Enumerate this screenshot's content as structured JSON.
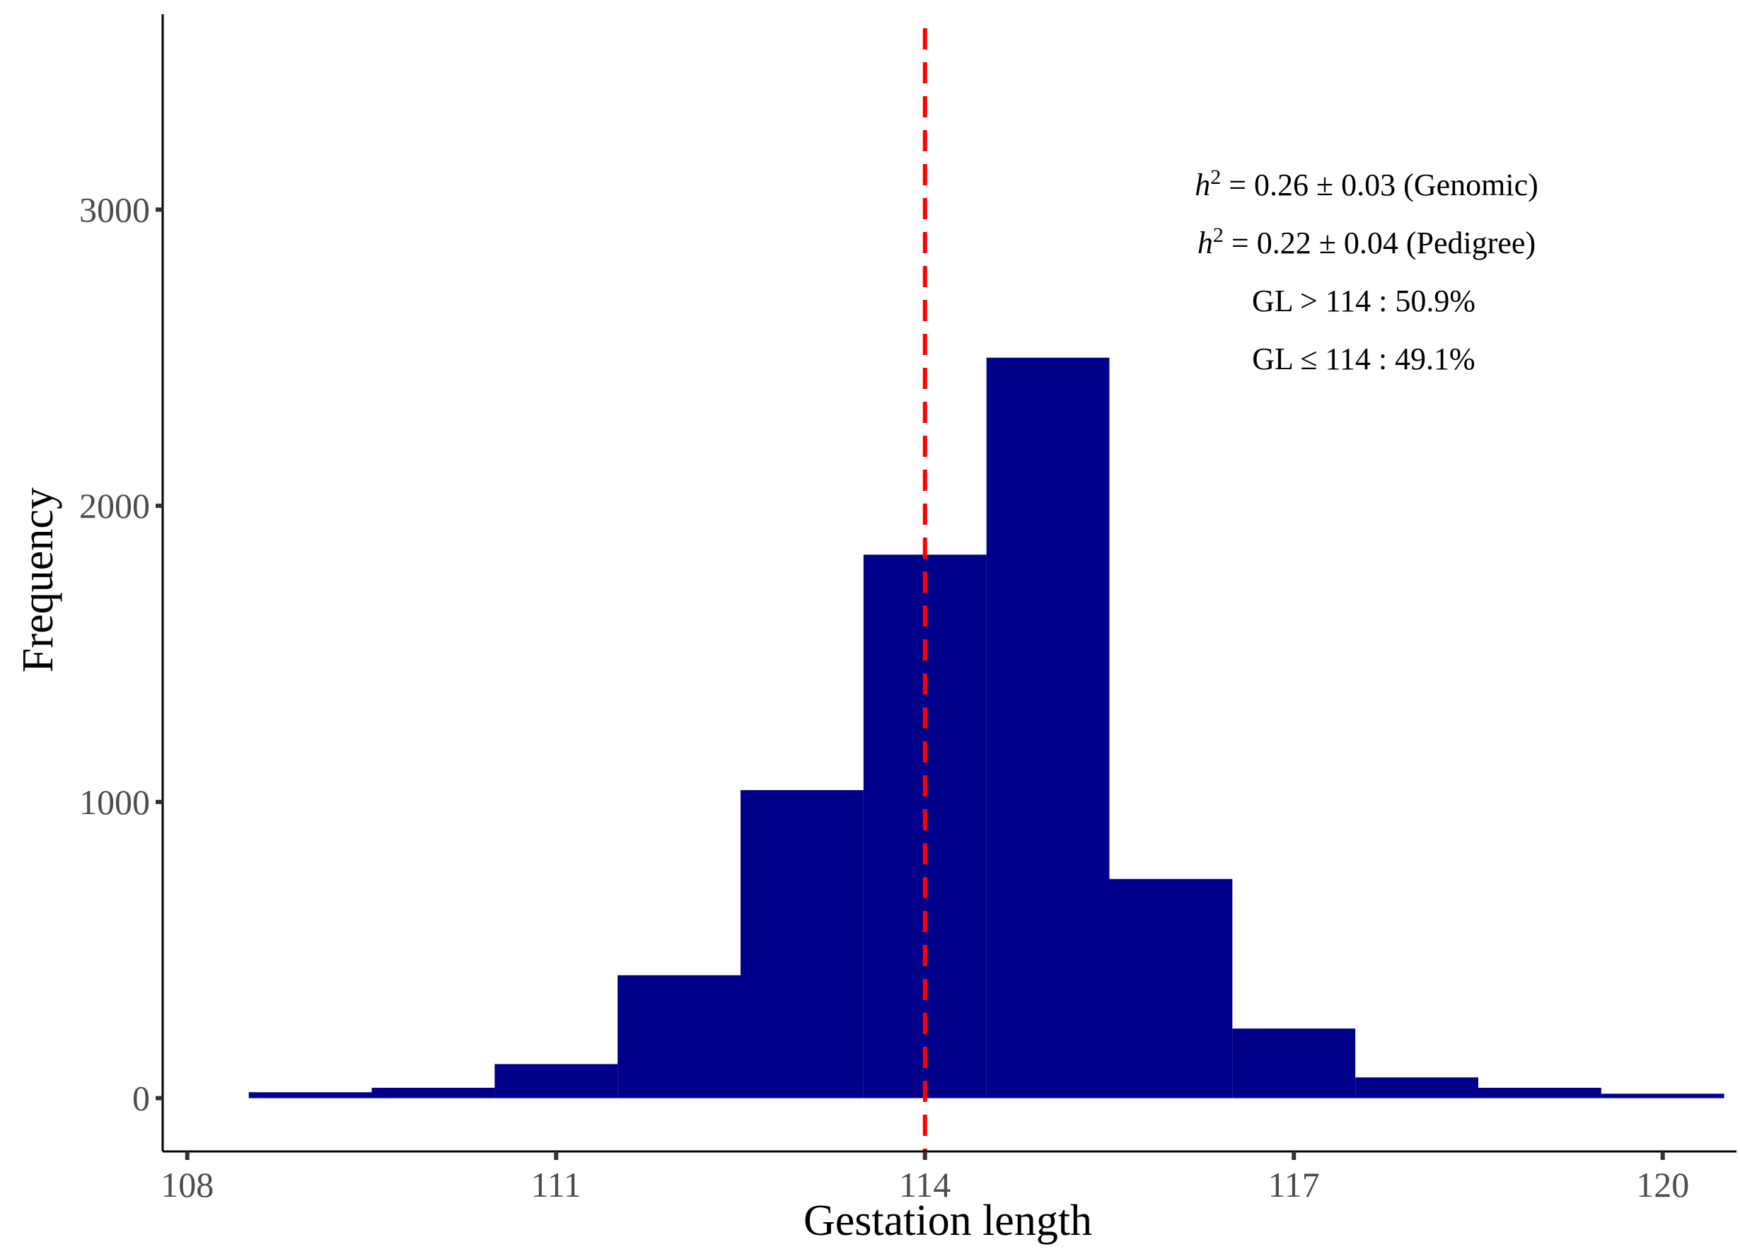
{
  "chart_data": {
    "type": "bar",
    "subtype": "histogram",
    "xlabel": "Gestation length",
    "ylabel": "Frequency",
    "xlim": [
      107.8,
      120.6
    ],
    "ylim": [
      -180,
      3660
    ],
    "xticks": [
      108,
      111,
      114,
      117,
      120
    ],
    "yticks": [
      0,
      1000,
      2000,
      3000
    ],
    "bin_width": 1,
    "bins": [
      {
        "x": 109,
        "count": 20
      },
      {
        "x": 110,
        "count": 35
      },
      {
        "x": 111,
        "count": 115
      },
      {
        "x": 112,
        "count": 415
      },
      {
        "x": 113,
        "count": 1040
      },
      {
        "x": 114,
        "count": 1835
      },
      {
        "x": 115,
        "count": 2500
      },
      {
        "x": 116,
        "count": 740
      },
      {
        "x": 117,
        "count": 235
      },
      {
        "x": 118,
        "count": 70
      },
      {
        "x": 119,
        "count": 35
      },
      {
        "x": 120,
        "count": 15
      }
    ],
    "reference_line": {
      "x": 114,
      "style": "dashed",
      "color": "#ff0000"
    },
    "bar_color": "#00008b",
    "grid": false,
    "annotations": [
      {
        "italic": "h",
        "sup": "2",
        "text": " = 0.26 ± 0.03 (Genomic)"
      },
      {
        "italic": "h",
        "sup": "2",
        "text": " = 0.22 ± 0.04 (Pedigree)"
      },
      {
        "text": "GL > 114 : 50.9%"
      },
      {
        "text": "GL ≤ 114 : 49.1%"
      }
    ]
  }
}
